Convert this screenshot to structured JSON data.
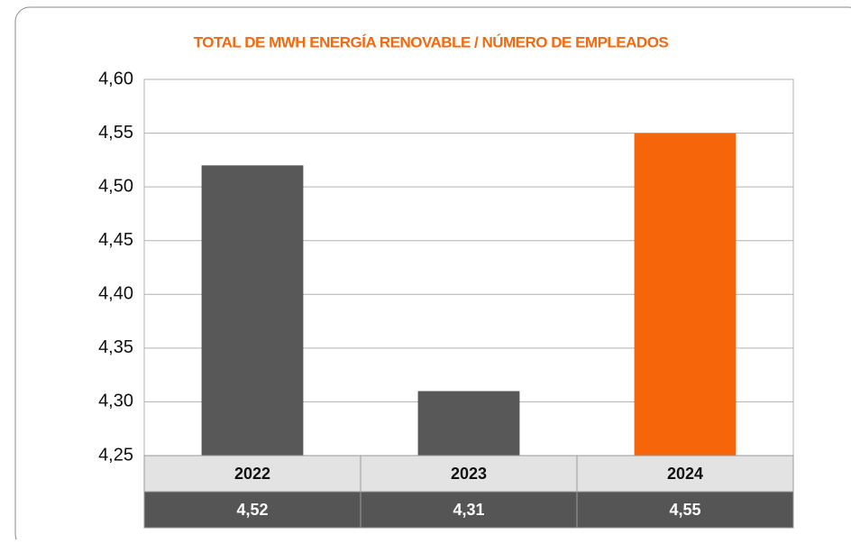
{
  "chart_data": {
    "type": "bar",
    "title": "TOTAL DE MWH ENERGÍA RENOVABLE / NÚMERO DE EMPLEADOS",
    "categories": [
      "2022",
      "2023",
      "2024"
    ],
    "values": [
      4.52,
      4.31,
      4.55
    ],
    "value_labels": [
      "4,52",
      "4,31",
      "4,55"
    ],
    "colors": [
      "#585858",
      "#585858",
      "#f7650b"
    ],
    "ylim": [
      4.25,
      4.6
    ],
    "yticks": [
      {
        "value": 4.25,
        "label": "4,25"
      },
      {
        "value": 4.3,
        "label": "4,30"
      },
      {
        "value": 4.35,
        "label": "4,35"
      },
      {
        "value": 4.4,
        "label": "4,40"
      },
      {
        "value": 4.45,
        "label": "4,45"
      },
      {
        "value": 4.5,
        "label": "4,50"
      },
      {
        "value": 4.55,
        "label": "4,55"
      },
      {
        "value": 4.6,
        "label": "4,60"
      }
    ],
    "grid": true
  }
}
